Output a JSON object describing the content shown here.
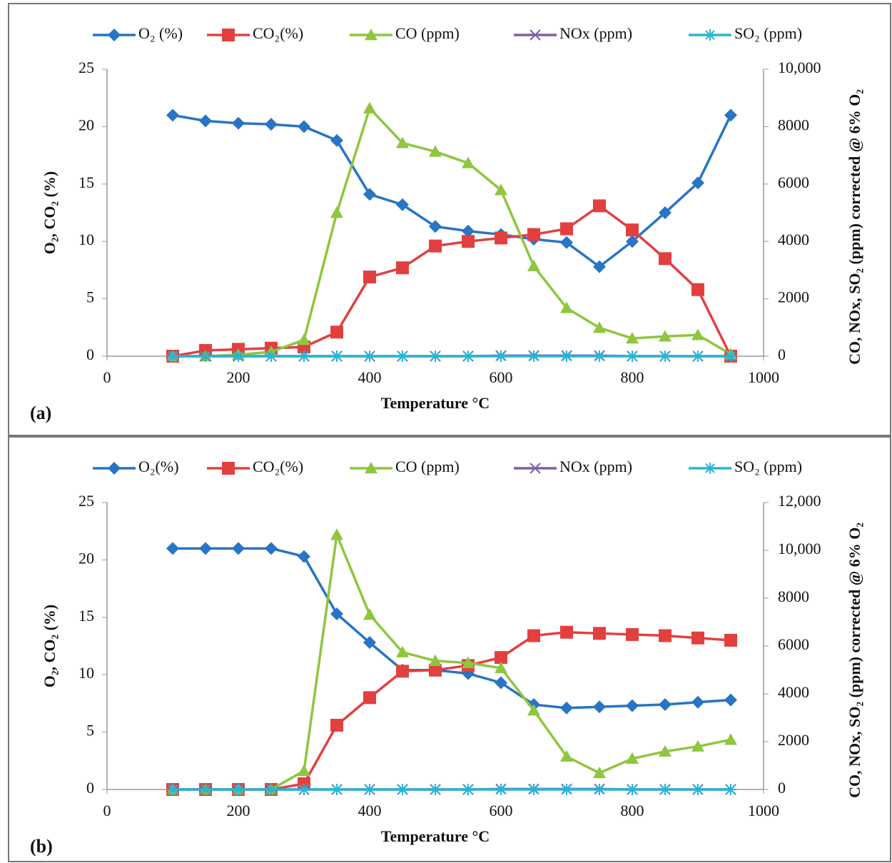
{
  "chart_data": [
    {
      "type": "line",
      "panel_label": "(a)",
      "xlabel": "Temperature °C",
      "ylabel": "O₂, CO₂ (%)",
      "y2label": "CO, NOx, SO₂ (ppm) corrected @ 6% O₂",
      "x": [
        100,
        150,
        200,
        250,
        300,
        350,
        400,
        450,
        500,
        550,
        600,
        650,
        700,
        750,
        800,
        850,
        900,
        950
      ],
      "xlim": [
        0,
        1000
      ],
      "xticks": [
        0,
        200,
        400,
        600,
        800,
        1000
      ],
      "ylim": [
        0,
        25
      ],
      "yticks": [
        0,
        5,
        10,
        15,
        20,
        25
      ],
      "y2lim": [
        0,
        10000
      ],
      "y2ticks": [
        0,
        2000,
        4000,
        6000,
        8000,
        {
          "value": 10000,
          "label": "10,000"
        }
      ],
      "series": [
        {
          "name": "O₂ (%)",
          "color": "#2874c5",
          "marker": "diamond",
          "axis": "y",
          "values": [
            21,
            20.5,
            20.3,
            20.2,
            20,
            18.8,
            14.1,
            13.2,
            11.3,
            10.9,
            10.6,
            10.2,
            9.9,
            7.8,
            10,
            12.5,
            15.1,
            21
          ]
        },
        {
          "name": "CO₂(%)",
          "color": "#e2403f",
          "marker": "square",
          "axis": "y",
          "values": [
            0,
            0.5,
            0.6,
            0.7,
            0.8,
            2.1,
            6.9,
            7.7,
            9.6,
            10,
            10.3,
            10.6,
            11.1,
            13.1,
            11,
            8.5,
            5.8,
            0
          ]
        },
        {
          "name": "CO (ppm)",
          "color": "#8ec63f",
          "marker": "triangle",
          "axis": "y2",
          "values": [
            0,
            0,
            50,
            150,
            570,
            5000,
            8640,
            7430,
            7130,
            6730,
            5790,
            3140,
            1680,
            990,
            620,
            690,
            740,
            70
          ]
        },
        {
          "name": "NOx (ppm)",
          "color": "#7f5fa8",
          "marker": "x",
          "axis": "y2",
          "values": [
            0,
            0,
            0,
            0,
            0,
            0,
            0,
            0,
            0,
            0,
            20,
            20,
            20,
            20,
            0,
            0,
            0,
            0
          ]
        },
        {
          "name": "SO₂ (ppm)",
          "color": "#24b6d6",
          "marker": "star",
          "axis": "y2",
          "values": [
            0,
            0,
            0,
            0,
            0,
            0,
            0,
            0,
            0,
            0,
            0,
            0,
            0,
            0,
            0,
            0,
            0,
            0
          ]
        }
      ]
    },
    {
      "type": "line",
      "panel_label": "(b)",
      "xlabel": "Temperature °C",
      "ylabel": "O₂, CO₂ (%)",
      "y2label": "CO, NOx, SO₂ (ppm) corrected @ 6% O₂",
      "x": [
        100,
        150,
        200,
        250,
        300,
        350,
        400,
        450,
        500,
        550,
        600,
        650,
        700,
        750,
        800,
        850,
        900,
        950
      ],
      "xlim": [
        0,
        1000
      ],
      "xticks": [
        0,
        200,
        400,
        600,
        800,
        1000
      ],
      "ylim": [
        0,
        25
      ],
      "yticks": [
        0,
        5,
        10,
        15,
        20,
        25
      ],
      "y2lim": [
        0,
        12000
      ],
      "y2ticks": [
        0,
        2000,
        4000,
        6000,
        8000,
        {
          "value": 10000,
          "label": "10,000"
        },
        {
          "value": 12000,
          "label": "12,000"
        }
      ],
      "series": [
        {
          "name": "O₂(%)",
          "color": "#2874c5",
          "marker": "diamond",
          "axis": "y",
          "values": [
            21,
            21,
            21,
            21,
            20.3,
            15.3,
            12.8,
            10.4,
            10.4,
            10.1,
            9.3,
            7.4,
            7.1,
            7.2,
            7.3,
            7.4,
            7.6,
            7.8
          ]
        },
        {
          "name": "CO₂(%)",
          "color": "#e2403f",
          "marker": "square",
          "axis": "y",
          "values": [
            0,
            0,
            0,
            0,
            0.5,
            5.6,
            8,
            10.3,
            10.4,
            10.8,
            11.5,
            13.4,
            13.7,
            13.6,
            13.5,
            13.4,
            13.2,
            13
          ]
        },
        {
          "name": "CO (ppm)",
          "color": "#8ec63f",
          "marker": "triangle",
          "axis": "y2",
          "values": [
            0,
            0,
            0,
            0,
            780,
            10650,
            7310,
            5740,
            5380,
            5290,
            5080,
            3310,
            1380,
            690,
            1290,
            1590,
            1800,
            2080
          ]
        },
        {
          "name": "NOx (ppm)",
          "color": "#7f5fa8",
          "marker": "x",
          "axis": "y2",
          "values": [
            0,
            0,
            0,
            0,
            0,
            0,
            0,
            0,
            0,
            0,
            20,
            20,
            20,
            20,
            0,
            0,
            0,
            0
          ]
        },
        {
          "name": "SO₂ (ppm)",
          "color": "#24b6d6",
          "marker": "star",
          "axis": "y2",
          "values": [
            0,
            0,
            0,
            0,
            0,
            0,
            0,
            0,
            0,
            0,
            0,
            0,
            0,
            0,
            0,
            0,
            0,
            0
          ]
        }
      ]
    }
  ]
}
